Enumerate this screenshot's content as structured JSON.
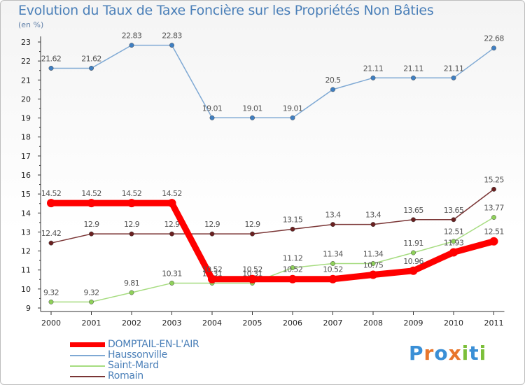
{
  "title": "Evolution du Taux de Taxe Foncière sur les Propriétés Non Bâties",
  "unit_label": "(en %)",
  "logo": {
    "letters": [
      "P",
      "r",
      "o",
      "x",
      "i",
      "t",
      "i"
    ],
    "colors": [
      "#3a8fd6",
      "#e8762b",
      "#3a8fd6",
      "#e8762b",
      "#7cbf3a",
      "#3a8fd6",
      "#7cbf3a"
    ]
  },
  "chart_data": {
    "type": "line",
    "title": "Evolution du Taux de Taxe Foncière sur les Propriétés Non Bâties",
    "ylabel": "(en %)",
    "xlabel": "",
    "categories": [
      "2000",
      "2001",
      "2002",
      "2003",
      "2004",
      "2005",
      "2006",
      "2007",
      "2008",
      "2009",
      "2010",
      "2011"
    ],
    "yticks": [
      "9",
      "10",
      "11",
      "12",
      "13",
      "14",
      "15",
      "16",
      "17",
      "18",
      "19",
      "20",
      "21",
      "22",
      "23"
    ],
    "ylim": [
      9,
      23
    ],
    "series": [
      {
        "name": "Haussonville",
        "color": "#7fa9d4",
        "marker": "#3f7fc2",
        "width": 1.5,
        "values": [
          21.62,
          21.62,
          22.83,
          22.83,
          19.01,
          19.01,
          19.01,
          20.5,
          21.11,
          21.11,
          21.11,
          22.68
        ],
        "labels": [
          "21.62",
          "21.62",
          "22.83",
          "22.83",
          "19.01",
          "19.01",
          "19.01",
          "20.5",
          "21.11",
          "21.11",
          "21.11",
          "22.68"
        ]
      },
      {
        "name": "Romain",
        "color": "#7a3535",
        "marker": "#6a2020",
        "width": 1.5,
        "values": [
          12.42,
          12.9,
          12.9,
          12.9,
          12.9,
          12.9,
          13.15,
          13.4,
          13.4,
          13.65,
          13.65,
          15.25
        ],
        "labels": [
          "12.42",
          "12.9",
          "12.9",
          "12.9",
          "12.9",
          "12.9",
          "13.15",
          "13.4",
          "13.4",
          "13.65",
          "13.65",
          "15.25"
        ]
      },
      {
        "name": "Saint-Mard",
        "color": "#a6dc80",
        "marker": "#8fd15a",
        "width": 1.5,
        "values": [
          9.32,
          9.32,
          9.81,
          10.31,
          10.31,
          10.31,
          11.12,
          11.34,
          11.34,
          11.91,
          12.51,
          13.77
        ],
        "labels": [
          "9.32",
          "9.32",
          "9.81",
          "10.31",
          "10.31",
          "10.31",
          "11.12",
          "11.34",
          "11.34",
          "11.91",
          "12.51",
          "13.77"
        ]
      },
      {
        "name": "DOMPTAIL-EN-L'AIR",
        "color": "#ff0000",
        "marker": "#ff0000",
        "width": 9,
        "values": [
          14.52,
          14.52,
          14.52,
          14.52,
          10.52,
          10.52,
          10.52,
          10.52,
          10.75,
          10.96,
          11.93,
          12.51
        ],
        "labels": [
          "14.52",
          "14.52",
          "14.52",
          "14.52",
          "10.52",
          "10.52",
          "10.52",
          "10.52",
          "10.75",
          "10.96",
          "11.93",
          "12.51"
        ]
      }
    ],
    "legend": [
      "DOMPTAIL-EN-L'AIR",
      "Haussonville",
      "Saint-Mard",
      "Romain"
    ],
    "legend_colors": [
      "#ff0000",
      "#7fa9d4",
      "#a6dc80",
      "#7a3535"
    ],
    "grid": false,
    "legend_position": "bottom-left"
  }
}
